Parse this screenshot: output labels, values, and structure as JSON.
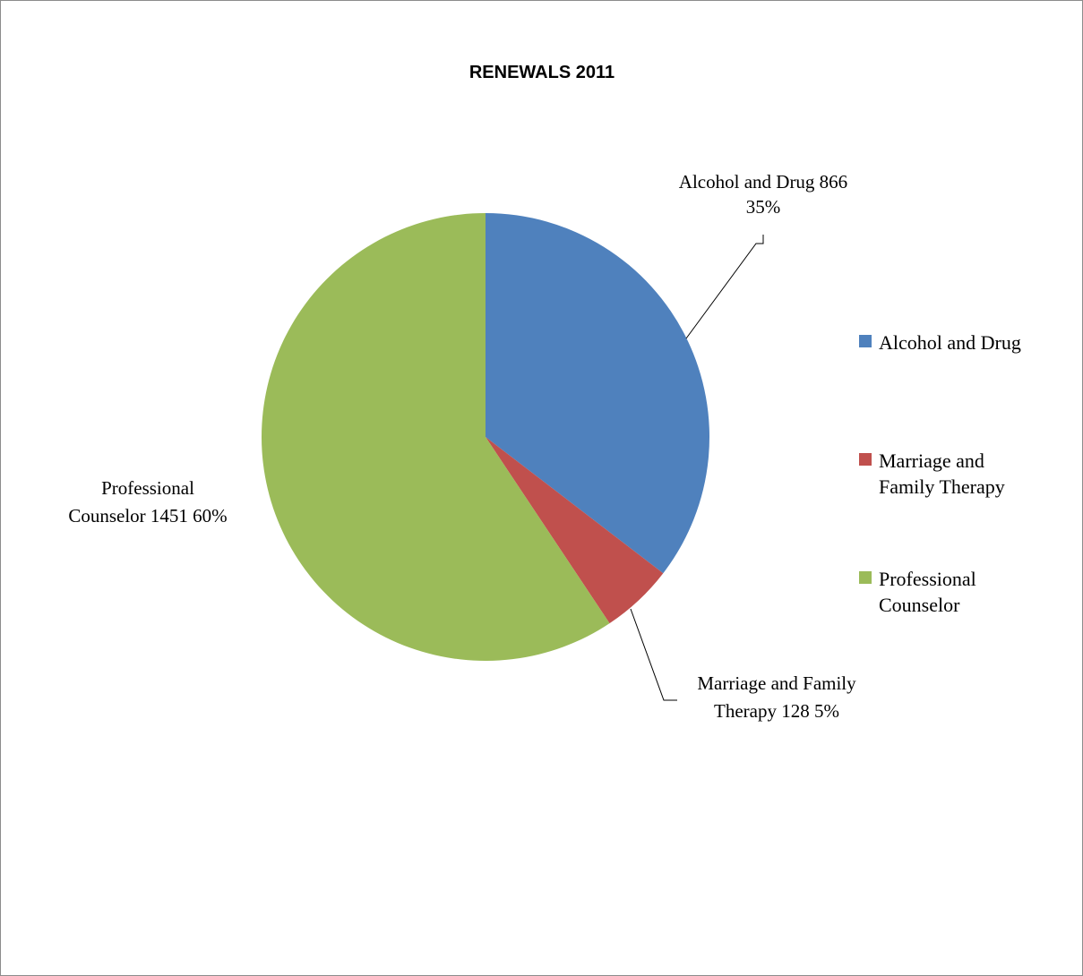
{
  "chart_data": {
    "type": "pie",
    "title": "RENEWALS 2011",
    "slices": [
      {
        "name": "Alcohol and Drug",
        "value": 866,
        "percent": "35%",
        "color": "#4f81bd",
        "data_label": [
          "Alcohol and Drug 866",
          "35%"
        ],
        "legend_label": [
          "Alcohol and Drug"
        ]
      },
      {
        "name": "Marriage and Family Therapy",
        "value": 128,
        "percent": "5%",
        "color": "#c0504d",
        "data_label": [
          "Marriage and Family",
          "Therapy 128 5%"
        ],
        "legend_label": [
          "Marriage and",
          "Family Therapy"
        ]
      },
      {
        "name": "Professional Counselor",
        "value": 1451,
        "percent": "60%",
        "color": "#9bbb59",
        "data_label": [
          "Professional",
          "Counselor 1451 60%"
        ],
        "legend_label": [
          "Professional",
          "Counselor"
        ]
      }
    ],
    "start_angle_deg": 0,
    "direction": "clockwise",
    "legend_position": "right"
  }
}
